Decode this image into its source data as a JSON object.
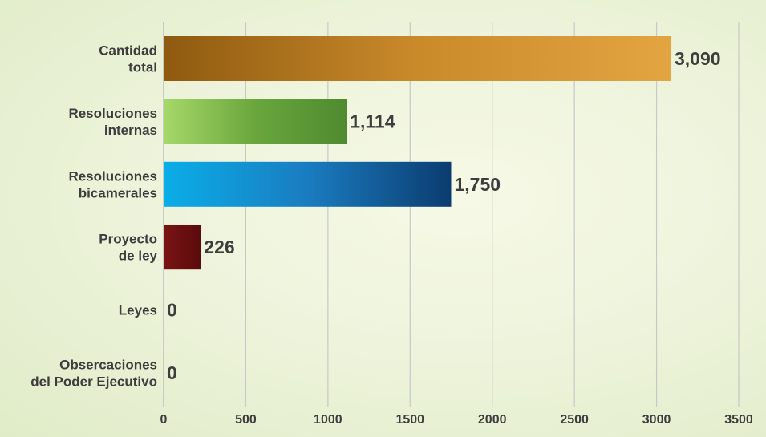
{
  "chart_data": {
    "type": "bar",
    "orientation": "horizontal",
    "categories": [
      [
        "Cantidad",
        "total"
      ],
      [
        "Resoluciones",
        "internas"
      ],
      [
        "Resoluciones",
        "bicamerales"
      ],
      [
        "Proyecto",
        "de ley"
      ],
      [
        "Leyes"
      ],
      [
        "Obsercaciones",
        "del Poder Ejecutivo"
      ]
    ],
    "values": [
      3090,
      1114,
      1750,
      226,
      0,
      0
    ],
    "value_labels": [
      "3,090",
      "1,114",
      "1,750",
      "226",
      "0",
      "0"
    ],
    "bar_colors": [
      [
        "#8f5a10",
        "#c98a2a",
        "#e3a542"
      ],
      [
        "#a6d86a",
        "#6aa63c",
        "#4f8a30"
      ],
      [
        "#0aaee8",
        "#1a7cc0",
        "#0b3c70"
      ],
      [
        "#7a1414",
        "#6a0f10",
        "#5a0b0c"
      ],
      [
        "#888888",
        "#888888",
        "#888888"
      ],
      [
        "#888888",
        "#888888",
        "#888888"
      ]
    ],
    "xlim": [
      0,
      3500
    ],
    "xticks": [
      0,
      500,
      1000,
      1500,
      2000,
      2500,
      3000,
      3500
    ],
    "grid": true,
    "gridline_color": "#c8c8c8"
  }
}
